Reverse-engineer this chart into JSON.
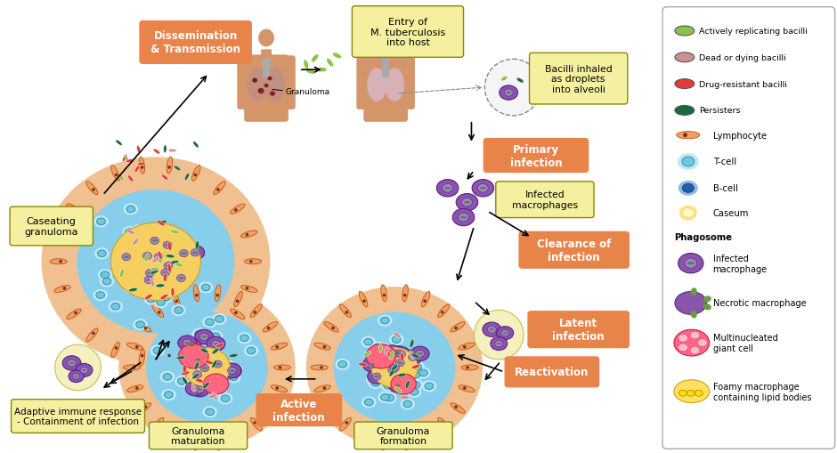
{
  "labels": {
    "dissemination": "Dissemination\n& Transmission",
    "entry": "Entry of\nM. tuberculosis\ninto host",
    "bacilli_inhaled": "Bacilli inhaled\nas droplets\ninto alveoli",
    "primary": "Primary\ninfection",
    "infected_macro": "Infected\nmacrophages",
    "clearance": "Clearance of\ninfection",
    "latent": "Latent\ninfection",
    "reactivation": "Reactivation",
    "granuloma_form": "Granuloma\nformation",
    "active": "Active\ninfection",
    "granuloma_mat": "Granuloma\nmaturation",
    "adaptive": "Adaptive immune response\n- Containment of infection",
    "caseating": "Caseating\ngranuloma",
    "granuloma_label": "Granuloma"
  },
  "colors": {
    "orange_box": "#e8834a",
    "yellow_box_bg": "#f5f0a0",
    "yellow_box_edge": "#888800",
    "bg": "#ffffff",
    "legend_border": "#999999",
    "lymphocyte_orange": "#e8834a",
    "lymphocyte_inner": "#c86020",
    "tcell_light": "#c0e8ff",
    "tcell_mid": "#70c8dc",
    "tcell_edge": "#3090a0",
    "bcell_light": "#90b8e0",
    "bcell_dark": "#2060a8",
    "caseum_yellow": "#f5c030",
    "caseum_glow": "#ffe080",
    "macrophage_purple": "#8855aa",
    "macrophage_dark": "#5a1e8a",
    "macrophage_light": "#aa80cc",
    "bacilli_lightgreen": "#8bc34a",
    "bacilli_darkgreen": "#1a6b3a",
    "bacilli_red": "#e53935",
    "bacilli_pink": "#cc9090",
    "lung_body": "#d4956a",
    "lung_left_fill": "#c09080",
    "lung_right_fill": "#d8b0b8",
    "granuloma_spot": "#8b1a1a",
    "pink_cell": "#ff6680",
    "yellow_cell": "#f5d060"
  },
  "pill_colors": [
    "#8bc34a",
    "#cc9090",
    "#e53935",
    "#1a6b3a"
  ],
  "pill_labels": [
    "Actively replicating bacilli",
    "Dead or dying bacilli",
    "Drug-resistant bacilli",
    "Persisters"
  ]
}
